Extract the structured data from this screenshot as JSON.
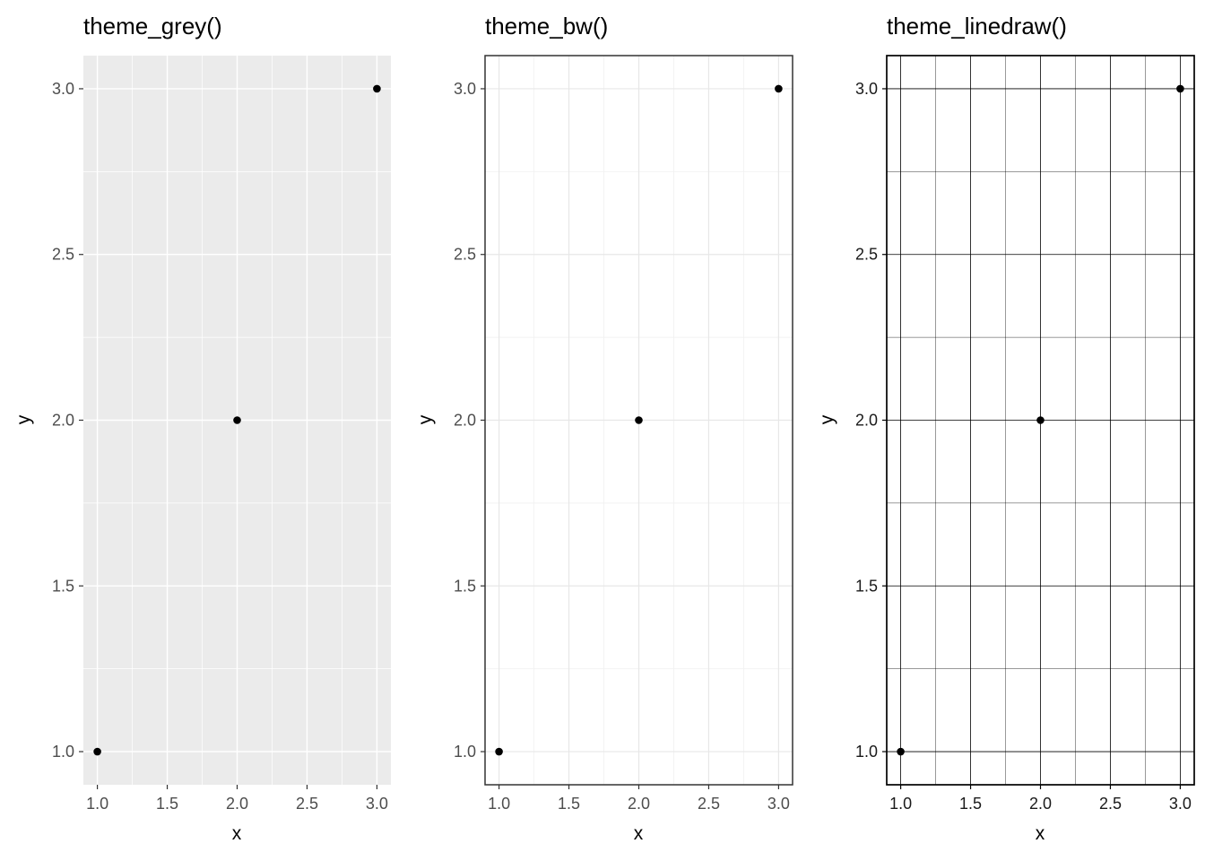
{
  "page": {
    "background_color": "#FFFFFF",
    "description": "Three ggplot2 scatter plots comparing themes"
  },
  "chart_data": [
    {
      "type": "scatter",
      "title": "theme_grey()",
      "xlabel": "x",
      "ylabel": "y",
      "points": [
        {
          "x": 1,
          "y": 1
        },
        {
          "x": 2,
          "y": 2
        },
        {
          "x": 3,
          "y": 3
        }
      ],
      "xlim": [
        0.9,
        3.1
      ],
      "ylim": [
        0.9,
        3.1
      ],
      "x_ticks": {
        "values": [
          1,
          1.5,
          2,
          2.5,
          3
        ],
        "labels": [
          "1.0",
          "1.5",
          "2.0",
          "2.5",
          "3.0"
        ]
      },
      "y_ticks": {
        "values": [
          1,
          1.5,
          2,
          2.5,
          3
        ],
        "labels": [
          "1.0",
          "1.5",
          "2.0",
          "2.5",
          "3.0"
        ]
      },
      "x_minor": [
        1.25,
        1.75,
        2.25,
        2.75
      ],
      "y_minor": [
        1.25,
        1.75,
        2.25,
        2.75
      ],
      "grid": "major+minor",
      "legend": "none",
      "theme": {
        "name": "theme_grey",
        "panel_background": "#EBEBEB",
        "panel_border": "none",
        "panel_border_width": 0,
        "grid_major_color": "#FFFFFF",
        "grid_major_width": 1.4,
        "grid_minor_color": "#FFFFFF",
        "grid_minor_width": 0.7,
        "axis_tick_color": "#333333",
        "tick_label_color": "#4D4D4D",
        "title_color": "#000000",
        "point_color": "#000000"
      }
    },
    {
      "type": "scatter",
      "title": "theme_bw()",
      "xlabel": "x",
      "ylabel": "y",
      "points": [
        {
          "x": 1,
          "y": 1
        },
        {
          "x": 2,
          "y": 2
        },
        {
          "x": 3,
          "y": 3
        }
      ],
      "xlim": [
        0.9,
        3.1
      ],
      "ylim": [
        0.9,
        3.1
      ],
      "x_ticks": {
        "values": [
          1,
          1.5,
          2,
          2.5,
          3
        ],
        "labels": [
          "1.0",
          "1.5",
          "2.0",
          "2.5",
          "3.0"
        ]
      },
      "y_ticks": {
        "values": [
          1,
          1.5,
          2,
          2.5,
          3
        ],
        "labels": [
          "1.0",
          "1.5",
          "2.0",
          "2.5",
          "3.0"
        ]
      },
      "x_minor": [
        1.25,
        1.75,
        2.25,
        2.75
      ],
      "y_minor": [
        1.25,
        1.75,
        2.25,
        2.75
      ],
      "grid": "major+minor",
      "legend": "none",
      "theme": {
        "name": "theme_bw",
        "panel_background": "#FFFFFF",
        "panel_border": "#333333",
        "panel_border_width": 1.5,
        "grid_major_color": "#E7E7E7",
        "grid_major_width": 1.2,
        "grid_minor_color": "#F2F2F2",
        "grid_minor_width": 0.9,
        "axis_tick_color": "#333333",
        "tick_label_color": "#4D4D4D",
        "title_color": "#000000",
        "point_color": "#000000"
      }
    },
    {
      "type": "scatter",
      "title": "theme_linedraw()",
      "xlabel": "x",
      "ylabel": "y",
      "points": [
        {
          "x": 1,
          "y": 1
        },
        {
          "x": 2,
          "y": 2
        },
        {
          "x": 3,
          "y": 3
        }
      ],
      "xlim": [
        0.9,
        3.1
      ],
      "ylim": [
        0.9,
        3.1
      ],
      "x_ticks": {
        "values": [
          1,
          1.5,
          2,
          2.5,
          3
        ],
        "labels": [
          "1.0",
          "1.5",
          "2.0",
          "2.5",
          "3.0"
        ]
      },
      "y_ticks": {
        "values": [
          1,
          1.5,
          2,
          2.5,
          3
        ],
        "labels": [
          "1.0",
          "1.5",
          "2.0",
          "2.5",
          "3.0"
        ]
      },
      "x_minor": [
        1.25,
        1.75,
        2.25,
        2.75
      ],
      "y_minor": [
        1.25,
        1.75,
        2.25,
        2.75
      ],
      "grid": "major+minor",
      "legend": "none",
      "theme": {
        "name": "theme_linedraw",
        "panel_background": "#FFFFFF",
        "panel_border": "#000000",
        "panel_border_width": 1.7,
        "grid_major_color": "#000000",
        "grid_major_width": 0.8,
        "grid_minor_color": "#000000",
        "grid_minor_width": 0.4,
        "axis_tick_color": "#000000",
        "tick_label_color": "#1A1A1A",
        "title_color": "#000000",
        "point_color": "#000000"
      }
    }
  ]
}
